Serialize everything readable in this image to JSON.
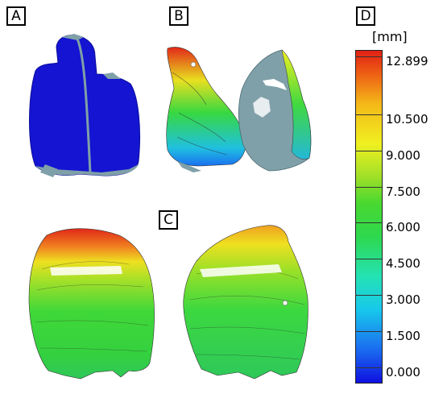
{
  "panels": {
    "a": "A",
    "b": "B",
    "c": "C",
    "d": "D"
  },
  "legend": {
    "unit": "[mm]",
    "ticks": [
      {
        "value": 12.899,
        "label": "12.899"
      },
      {
        "value": 10.5,
        "label": "10.500"
      },
      {
        "value": 9.0,
        "label": "9.000"
      },
      {
        "value": 7.5,
        "label": "7.500"
      },
      {
        "value": 6.0,
        "label": "6.000"
      },
      {
        "value": 4.5,
        "label": "4.500"
      },
      {
        "value": 3.0,
        "label": "3.000"
      },
      {
        "value": 1.5,
        "label": "1.500"
      },
      {
        "value": 0.0,
        "label": "0.000"
      }
    ]
  },
  "colors": {
    "surface_blue": "#1414d2",
    "surface_gray": "#7fa0a8",
    "scale_min": "#1010e0",
    "scale_max": "#e22014"
  }
}
